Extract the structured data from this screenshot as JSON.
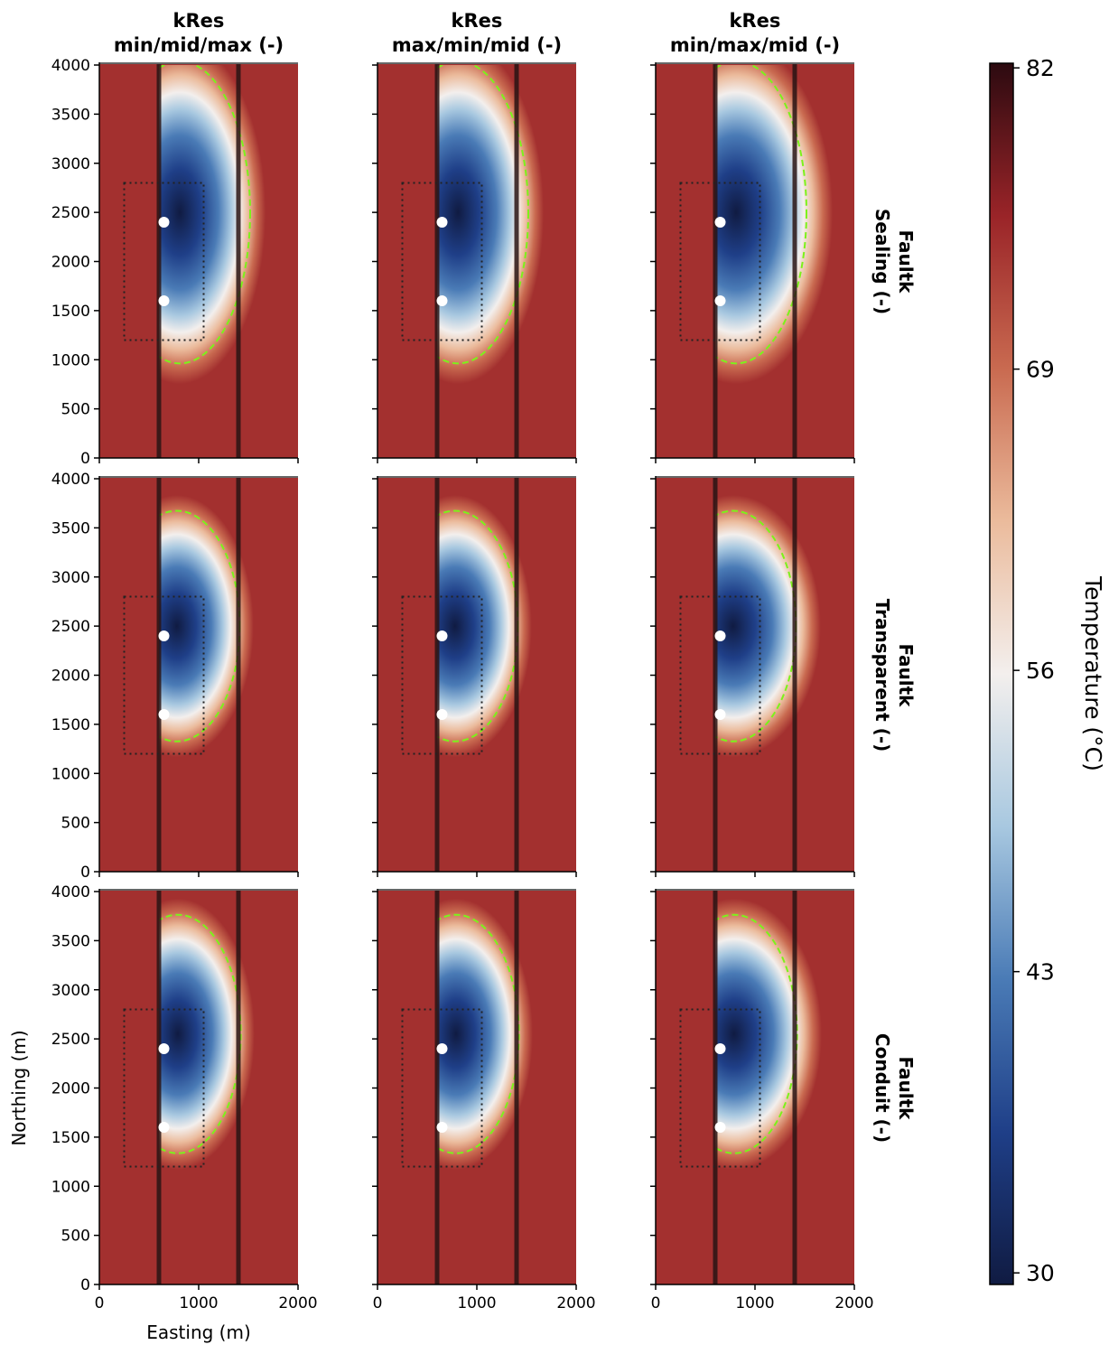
{
  "chart_data": {
    "type": "heatmap",
    "columns": [
      [
        "kRes",
        "min/mid/max (-)"
      ],
      [
        "kRes",
        "max/min/mid (-)"
      ],
      [
        "kRes",
        "min/max/mid (-)"
      ]
    ],
    "rows": [
      [
        "Faultk",
        "Sealing (-)"
      ],
      [
        "Faultk",
        "Transparent (-)"
      ],
      [
        "Faultk",
        "Conduit (-)"
      ]
    ],
    "xlabel": "Easting (m)",
    "ylabel": "Northing (m)",
    "xlim": [
      0,
      2000
    ],
    "xticks": [
      0,
      1000,
      2000
    ],
    "ylim": [
      0,
      4000
    ],
    "yticks": [
      0,
      500,
      1000,
      1500,
      2000,
      2500,
      3000,
      3500,
      4000
    ],
    "faults": [
      600,
      1400
    ],
    "wells": {
      "x": [
        650,
        650
      ],
      "y": [
        2400,
        1600
      ]
    },
    "box": {
      "x": [
        250,
        1050
      ],
      "y": [
        1200,
        2800
      ]
    },
    "background": "#a3302f",
    "colorbar": {
      "label": "Temperature (°C)",
      "lim": [
        29.5,
        82.2
      ],
      "ticks": [
        30,
        43,
        56,
        69,
        82
      ],
      "colors": [
        "#101b42",
        "#1f3f88",
        "#4a7bb6",
        "#a8c8e0",
        "#f3efed",
        "#ebbb9c",
        "#c96a50",
        "#9a2428",
        "#2c0a10"
      ]
    }
  }
}
